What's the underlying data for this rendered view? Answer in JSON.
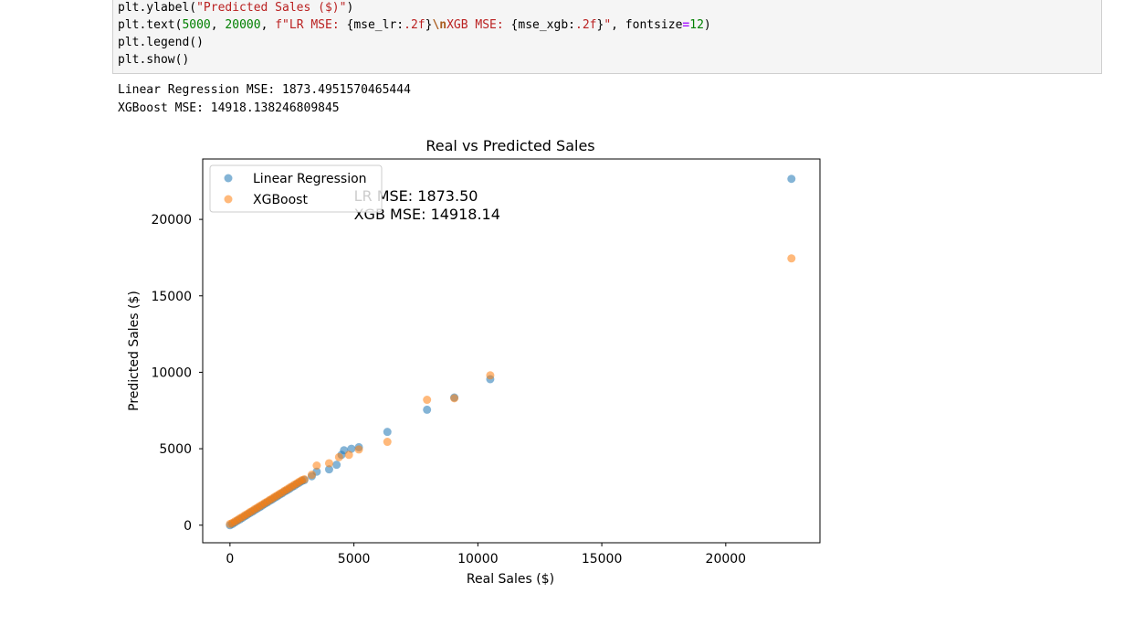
{
  "code": {
    "line1": {
      "a": "plt.ylabel(",
      "b": "\"Predicted Sales ($)\"",
      "c": ")"
    },
    "line2": {
      "a": "plt.text(",
      "b": "5000",
      "c": ", ",
      "d": "20000",
      "e": ", ",
      "f": "f\"LR MSE: ",
      "g": "{mse_lr:",
      "h": ".2f",
      "i": "}",
      "j": "\\n",
      "k": "XGB MSE: ",
      "l": "{mse_xgb:",
      "m": ".2f",
      "n": "}",
      "o": "\"",
      "p": ", fontsize",
      "q": "=",
      "r": "12",
      "s": ")"
    },
    "line3": "plt.legend()",
    "line4": "plt.show()"
  },
  "output": {
    "line1": "Linear Regression MSE: 1873.4951570465444",
    "line2": "XGBoost MSE: 14918.138246809845"
  },
  "colors": {
    "series_lr": "#1f77b4",
    "series_xgb": "#ff7f0e"
  },
  "chart_data": {
    "type": "scatter",
    "title": "Real vs Predicted Sales",
    "xlabel": "Real Sales ($)",
    "ylabel": "Predicted Sales ($)",
    "xlim": [
      -1100,
      23800
    ],
    "ylim": [
      -1150,
      23950
    ],
    "xticks": [
      0,
      5000,
      10000,
      15000,
      20000
    ],
    "yticks": [
      0,
      5000,
      10000,
      15000,
      20000
    ],
    "grid": false,
    "legend_position": "top-left",
    "annotation": {
      "x": 5000,
      "y": 20000,
      "lines": [
        "LR MSE: 1873.50",
        "XGB MSE: 14918.14"
      ]
    },
    "series": [
      {
        "name": "Linear Regression",
        "points": [
          [
            0,
            0
          ],
          [
            100,
            80
          ],
          [
            200,
            180
          ],
          [
            300,
            290
          ],
          [
            400,
            380
          ],
          [
            500,
            480
          ],
          [
            600,
            590
          ],
          [
            700,
            680
          ],
          [
            800,
            790
          ],
          [
            900,
            880
          ],
          [
            1000,
            980
          ],
          [
            1100,
            1090
          ],
          [
            1200,
            1180
          ],
          [
            1300,
            1280
          ],
          [
            1400,
            1390
          ],
          [
            1500,
            1480
          ],
          [
            1600,
            1590
          ],
          [
            1700,
            1680
          ],
          [
            1800,
            1790
          ],
          [
            1900,
            1880
          ],
          [
            2000,
            1990
          ],
          [
            2100,
            2080
          ],
          [
            2200,
            2190
          ],
          [
            2300,
            2280
          ],
          [
            2400,
            2380
          ],
          [
            2500,
            2490
          ],
          [
            2600,
            2580
          ],
          [
            2700,
            2690
          ],
          [
            2800,
            2780
          ],
          [
            2900,
            2890
          ],
          [
            3000,
            2950
          ],
          [
            3300,
            3200
          ],
          [
            3500,
            3500
          ],
          [
            4000,
            3650
          ],
          [
            4300,
            3950
          ],
          [
            4500,
            4600
          ],
          [
            4600,
            4900
          ],
          [
            4900,
            5000
          ],
          [
            5200,
            5100
          ],
          [
            6350,
            6100
          ],
          [
            7950,
            7550
          ],
          [
            9050,
            8350
          ],
          [
            10500,
            9550
          ],
          [
            22650,
            22650
          ]
        ]
      },
      {
        "name": "XGBoost",
        "points": [
          [
            0,
            80
          ],
          [
            100,
            150
          ],
          [
            200,
            250
          ],
          [
            300,
            340
          ],
          [
            400,
            450
          ],
          [
            500,
            540
          ],
          [
            600,
            650
          ],
          [
            700,
            740
          ],
          [
            800,
            850
          ],
          [
            900,
            940
          ],
          [
            1000,
            1050
          ],
          [
            1100,
            1140
          ],
          [
            1200,
            1250
          ],
          [
            1300,
            1340
          ],
          [
            1400,
            1450
          ],
          [
            1500,
            1540
          ],
          [
            1600,
            1650
          ],
          [
            1700,
            1740
          ],
          [
            1800,
            1850
          ],
          [
            1900,
            1940
          ],
          [
            2000,
            2050
          ],
          [
            2100,
            2140
          ],
          [
            2200,
            2250
          ],
          [
            2300,
            2340
          ],
          [
            2400,
            2450
          ],
          [
            2500,
            2540
          ],
          [
            2600,
            2650
          ],
          [
            2700,
            2740
          ],
          [
            2800,
            2850
          ],
          [
            2900,
            2940
          ],
          [
            3000,
            3000
          ],
          [
            3300,
            3300
          ],
          [
            3500,
            3900
          ],
          [
            4000,
            4050
          ],
          [
            4400,
            4450
          ],
          [
            4800,
            4600
          ],
          [
            5200,
            4950
          ],
          [
            6350,
            5450
          ],
          [
            7950,
            8200
          ],
          [
            9050,
            8300
          ],
          [
            10500,
            9800
          ],
          [
            22650,
            17450
          ]
        ]
      }
    ]
  }
}
